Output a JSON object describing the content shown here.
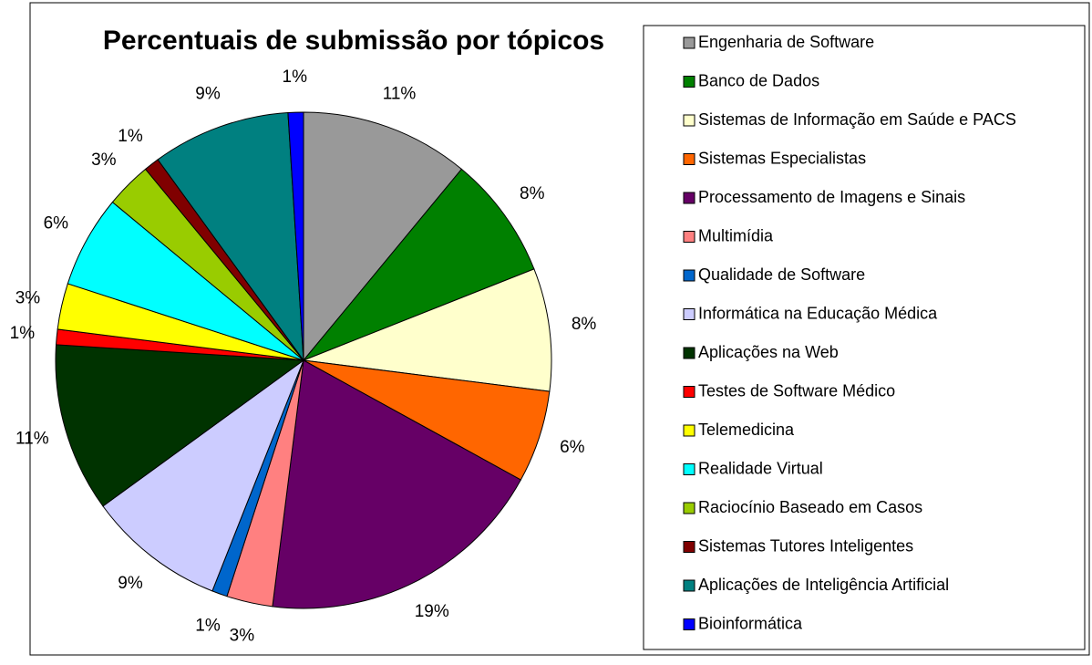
{
  "chart_data": {
    "type": "pie",
    "title": "Percentuais de submissão por tópicos",
    "categories": [
      "Engenharia de Software",
      "Banco de Dados",
      "Sistemas de Informação em Saúde e PACS",
      "Sistemas Especialistas",
      "Processamento de Imagens e Sinais",
      "Multimídia",
      "Qualidade de Software",
      "Informática na Educação Médica",
      "Aplicações na Web",
      "Testes de Software Médico",
      "Telemedicina",
      "Realidade Virtual",
      "Raciocínio Baseado em Casos",
      "Sistemas Tutores Inteligentes",
      "Aplicações de Inteligência Artificial",
      "Bioinformática"
    ],
    "values": [
      11,
      8,
      8,
      6,
      19,
      3,
      1,
      9,
      11,
      1,
      3,
      6,
      3,
      1,
      9,
      1
    ],
    "value_labels": [
      "11%",
      "8%",
      "8%",
      "6%",
      "19%",
      "3%",
      "1%",
      "9%",
      "11%",
      "1%",
      "3%",
      "6%",
      "3%",
      "1%",
      "9%",
      "1%"
    ],
    "colors": [
      "#999999",
      "#008000",
      "#ffffcc",
      "#ff6600",
      "#660066",
      "#ff8080",
      "#0066cc",
      "#ccccff",
      "#003300",
      "#ff0000",
      "#ffff00",
      "#00ffff",
      "#99cc00",
      "#800000",
      "#008080",
      "#0000ff"
    ],
    "legend": "right"
  }
}
